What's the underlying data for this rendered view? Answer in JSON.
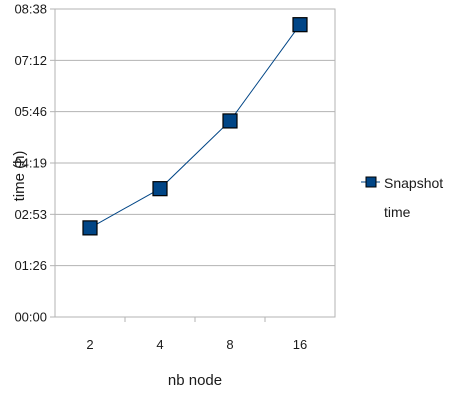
{
  "chart_data": {
    "type": "line",
    "title": "",
    "xlabel": "nb node",
    "ylabel": "time (h)",
    "categories": [
      "2",
      "4",
      "8",
      "16"
    ],
    "y_ticks": [
      "00:00",
      "01:26",
      "02:53",
      "04:19",
      "05:46",
      "07:12",
      "08:38"
    ],
    "ylim_hours": [
      0,
      8.64
    ],
    "grid": "horizontal",
    "legend_position": "right",
    "series": [
      {
        "name": "Snapshot time",
        "name_lines": [
          "Snapshot",
          "time"
        ],
        "color": "#004586",
        "marker": "square",
        "values_hours": [
          2.5,
          3.6,
          5.5,
          8.2
        ]
      }
    ]
  }
}
